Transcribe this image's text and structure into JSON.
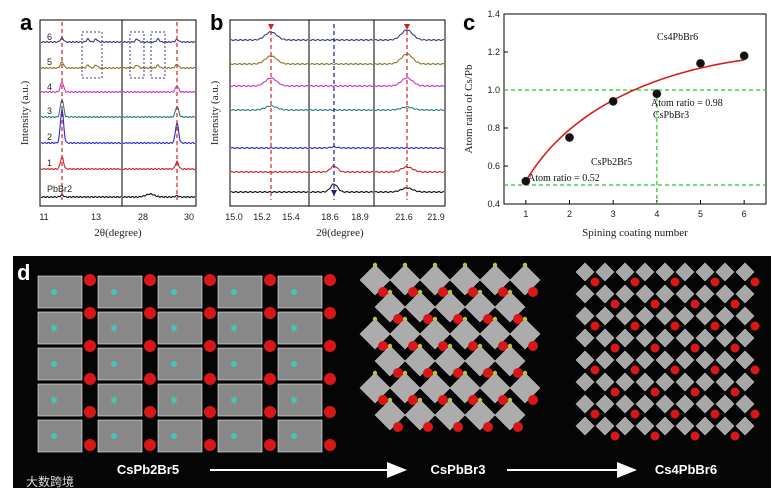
{
  "panel_a": {
    "label": "a",
    "ylabel": "Intensity (a.u.)",
    "xlabel": "2θ(degree)",
    "ticks_left": [
      "11",
      "13"
    ],
    "ticks_right": [
      "28",
      "30"
    ],
    "trace_labels": [
      "6",
      "5",
      "4",
      "3",
      "2",
      "1",
      "PbBr2"
    ],
    "trace_colors": [
      "#3a3a8c",
      "#8a7a20",
      "#cc33cc",
      "#2a7f7f",
      "#2a2ad0",
      "#cc2222",
      "#111111"
    ]
  },
  "panel_b": {
    "label": "b",
    "ylabel": "Intensity (a.u.)",
    "xlabel": "2θ(degree)",
    "ticks": [
      "15.0",
      "15.2",
      "15.4",
      "18.6",
      "18.9",
      "21.6",
      "21.9"
    ],
    "trace_colors": [
      "#3a3a8c",
      "#8a7a20",
      "#cc33cc",
      "#2a7f7f",
      "#2a2ad0",
      "#cc2222",
      "#111111"
    ]
  },
  "panel_c": {
    "label": "c",
    "chart_data": {
      "type": "scatter",
      "title": "",
      "xlabel": "Spining coating number",
      "ylabel": "Atom ratio of Cs/Pb",
      "x": [
        1,
        2,
        3,
        4,
        5,
        6
      ],
      "y": [
        0.52,
        0.75,
        0.94,
        0.98,
        1.14,
        1.18
      ],
      "xlim": [
        0.5,
        6.5
      ],
      "ylim": [
        0.4,
        1.4
      ],
      "xticks": [
        "1",
        "2",
        "3",
        "4",
        "5",
        "6"
      ],
      "yticks": [
        "0.4",
        "0.6",
        "0.8",
        "1.0",
        "1.2",
        "1.4"
      ],
      "fit_color": "#d42020",
      "guide_color": "#22cc22",
      "guides_y": [
        0.5,
        1.0
      ],
      "guide_x": 4,
      "annotations": {
        "cs4": "Cs4PbBr6",
        "ratio098": "Atom ratio = 0.98",
        "cspbbr3": "CsPbBr3",
        "cspb2br5": "CsPb2Br5",
        "ratio052": "Atom ratio = 0.52"
      }
    }
  },
  "panel_d": {
    "label": "d",
    "arrow_labels": [
      "CsPb2Br5",
      "CsPbBr3",
      "Cs4PbBr6"
    ]
  },
  "watermark": "大数跨境"
}
